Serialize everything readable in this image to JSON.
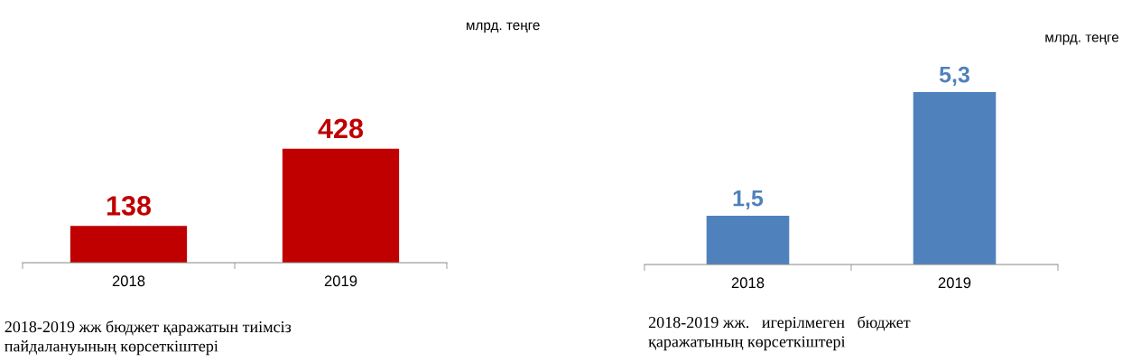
{
  "chart_data": [
    {
      "type": "bar",
      "categories": [
        "2018",
        "2019"
      ],
      "values": [
        138,
        428
      ],
      "color": "#c00000",
      "value_labels": [
        "138",
        "428"
      ],
      "annotations": [
        "млрд. теңге",
        "2018-2019 жж бюджет қаражатын тиімсіз\nпайдалануының көрсеткіштері"
      ]
    },
    {
      "type": "bar",
      "categories": [
        "2018",
        "2019"
      ],
      "values": [
        1.5,
        5.3
      ],
      "color": "#4f81bd",
      "value_labels": [
        "1,5",
        "5,3"
      ],
      "annotations": [
        "млрд. теңге",
        "2018-2019 жж.   игерілмеген   бюджет\nқаражатының көрсеткіштері"
      ]
    }
  ]
}
